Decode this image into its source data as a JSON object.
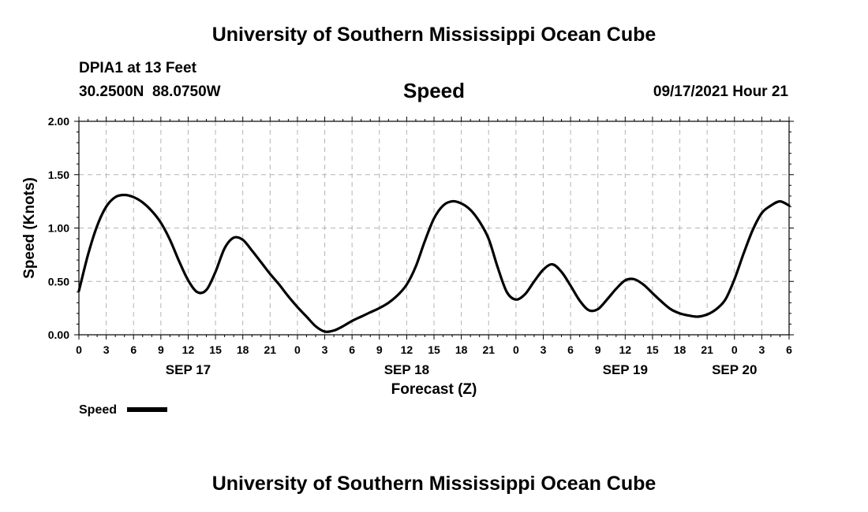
{
  "header": {
    "title_top": "University of Southern Mississippi Ocean Cube",
    "station": "DPIA1 at 13 Feet",
    "coords": "30.2500N  88.0750W",
    "variable": "Speed",
    "datetime": "09/17/2021 Hour 21",
    "title_bottom": "University of Southern Mississippi Ocean Cube"
  },
  "colors": {
    "line": "#000000",
    "grid": "#b4b4b4",
    "axis": "#000000"
  },
  "chart_data": {
    "type": "line",
    "xlabel": "Forecast (Z)",
    "ylabel": "Speed (Knots)",
    "ylim": [
      0,
      2.0
    ],
    "yticks": [
      "0.00",
      "0.50",
      "1.00",
      "1.50",
      "2.00"
    ],
    "xlim_hours": [
      0,
      78
    ],
    "xticks": [
      "0",
      "3",
      "6",
      "9",
      "12",
      "15",
      "18",
      "21",
      "0",
      "3",
      "6",
      "9",
      "12",
      "15",
      "18",
      "21",
      "0",
      "3",
      "6",
      "9",
      "12",
      "15",
      "18",
      "21",
      "0",
      "3",
      "6"
    ],
    "day_labels": [
      {
        "label": "SEP 17",
        "hour": 12
      },
      {
        "label": "SEP 18",
        "hour": 36
      },
      {
        "label": "SEP 19",
        "hour": 60
      },
      {
        "label": "SEP 20",
        "hour": 72
      }
    ],
    "grid": true,
    "legend_position": "bottom-left",
    "series": [
      {
        "name": "Speed",
        "x": [
          0,
          1,
          2,
          3,
          4,
          5,
          6,
          7,
          8,
          9,
          10,
          11,
          12,
          13,
          14,
          15,
          16,
          17,
          18,
          19,
          20,
          21,
          22,
          23,
          24,
          25,
          26,
          27,
          28,
          29,
          30,
          31,
          32,
          33,
          34,
          35,
          36,
          37,
          38,
          39,
          40,
          41,
          42,
          43,
          44,
          45,
          46,
          47,
          48,
          49,
          50,
          51,
          52,
          53,
          54,
          55,
          56,
          57,
          58,
          59,
          60,
          61,
          62,
          63,
          64,
          65,
          66,
          67,
          68,
          69,
          70,
          71,
          72,
          73,
          74,
          75,
          76,
          77,
          78
        ],
        "values": [
          0.41,
          0.75,
          1.02,
          1.2,
          1.29,
          1.31,
          1.29,
          1.24,
          1.16,
          1.05,
          0.89,
          0.69,
          0.51,
          0.4,
          0.42,
          0.59,
          0.81,
          0.91,
          0.89,
          0.79,
          0.68,
          0.57,
          0.47,
          0.36,
          0.26,
          0.17,
          0.08,
          0.03,
          0.04,
          0.08,
          0.13,
          0.17,
          0.21,
          0.25,
          0.3,
          0.37,
          0.47,
          0.64,
          0.88,
          1.09,
          1.21,
          1.25,
          1.23,
          1.17,
          1.06,
          0.9,
          0.63,
          0.4,
          0.33,
          0.38,
          0.5,
          0.61,
          0.66,
          0.59,
          0.46,
          0.32,
          0.23,
          0.24,
          0.33,
          0.43,
          0.51,
          0.52,
          0.47,
          0.39,
          0.31,
          0.24,
          0.2,
          0.18,
          0.17,
          0.19,
          0.24,
          0.33,
          0.52,
          0.76,
          0.98,
          1.14,
          1.21,
          1.25,
          1.21
        ]
      }
    ]
  },
  "legend": {
    "label": "Speed"
  }
}
